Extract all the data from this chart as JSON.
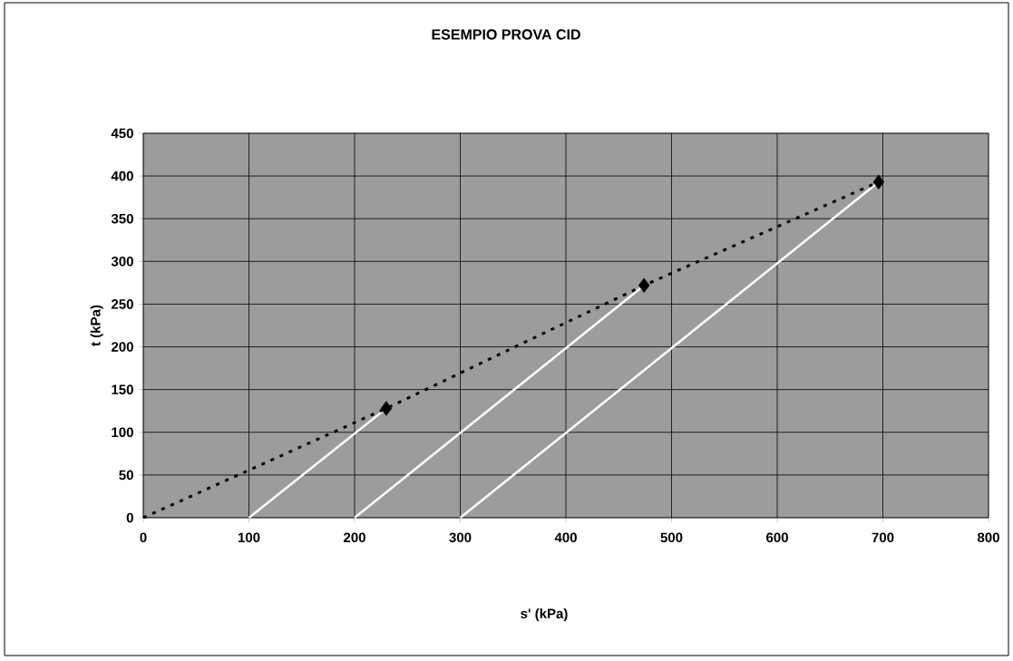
{
  "chart_data": {
    "type": "line",
    "title": "ESEMPIO PROVA CID",
    "xlabel": "s' (kPa)",
    "ylabel": "t (kPa)",
    "xlim": [
      0,
      800
    ],
    "xticks": [
      0,
      100,
      200,
      300,
      400,
      500,
      600,
      700,
      800
    ],
    "ylim": [
      0,
      450
    ],
    "yticks": [
      0,
      50,
      100,
      150,
      200,
      250,
      300,
      350,
      400,
      450
    ],
    "grid": true,
    "series": [
      {
        "color": "#ffffff",
        "line_style": "solid",
        "x": [
          100,
          230
        ],
        "values": [
          0,
          128
        ]
      },
      {
        "color": "#ffffff",
        "line_style": "solid",
        "x": [
          200,
          474
        ],
        "values": [
          0,
          272
        ]
      },
      {
        "color": "#ffffff",
        "line_style": "solid",
        "x": [
          300,
          696
        ],
        "values": [
          0,
          393
        ]
      },
      {
        "color": "#000000",
        "line_style": "dotted",
        "x": [
          0,
          230,
          474,
          696
        ],
        "values": [
          0,
          128,
          272,
          393
        ]
      },
      {
        "type": "scatter",
        "color": "#000000",
        "marker": "diamond",
        "x": [
          230,
          474,
          696
        ],
        "values": [
          128,
          272,
          393
        ]
      }
    ]
  }
}
